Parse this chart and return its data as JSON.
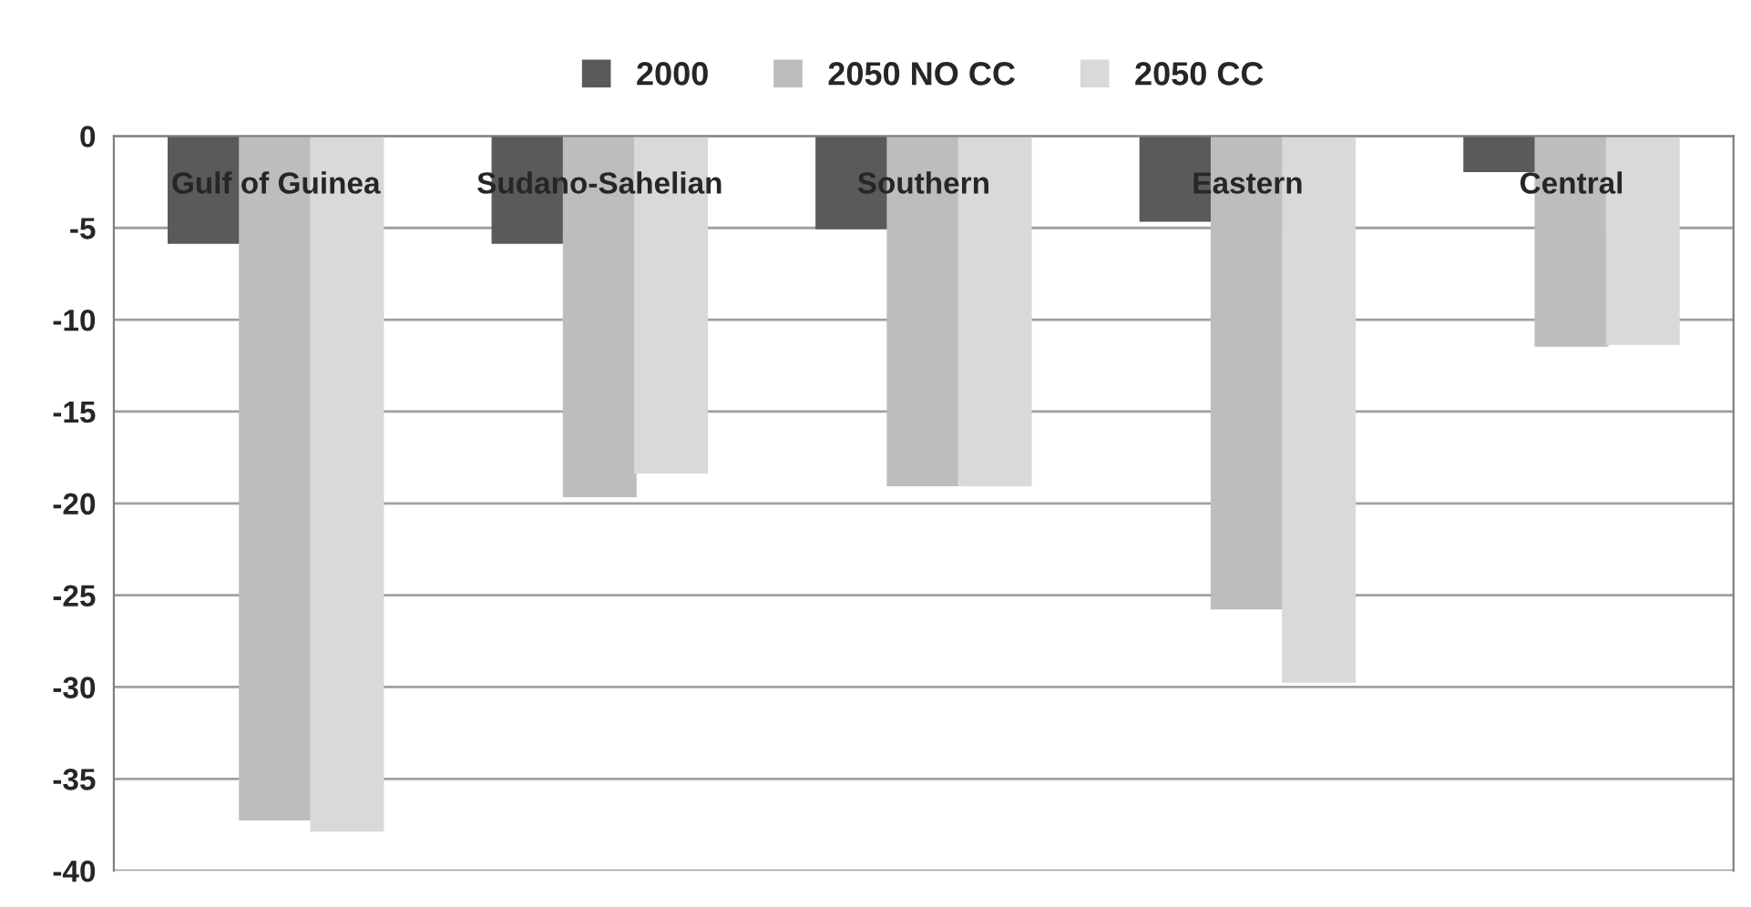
{
  "chart_data": {
    "type": "bar",
    "categories": [
      "Gulf of Guinea",
      "Sudano-Sahelian",
      "Southern",
      "Eastern",
      "Central"
    ],
    "series": [
      {
        "name": "2000",
        "color": "#5a5a5a",
        "values": [
          -5.8,
          -5.8,
          -5.0,
          -4.6,
          -1.9
        ]
      },
      {
        "name": "2050 NO CC",
        "color": "#bdbdbd",
        "values": [
          -37.2,
          -19.6,
          -19.0,
          -25.7,
          -11.4
        ]
      },
      {
        "name": "2050 CC",
        "color": "#d9d9d9",
        "values": [
          -37.8,
          -18.3,
          -19.0,
          -29.7,
          -11.3
        ]
      }
    ],
    "ylim": [
      -40,
      0
    ],
    "yticks": [
      -40,
      -35,
      -30,
      -25,
      -20,
      -15,
      -10,
      -5,
      0
    ],
    "grid": "y",
    "legend": "top"
  }
}
